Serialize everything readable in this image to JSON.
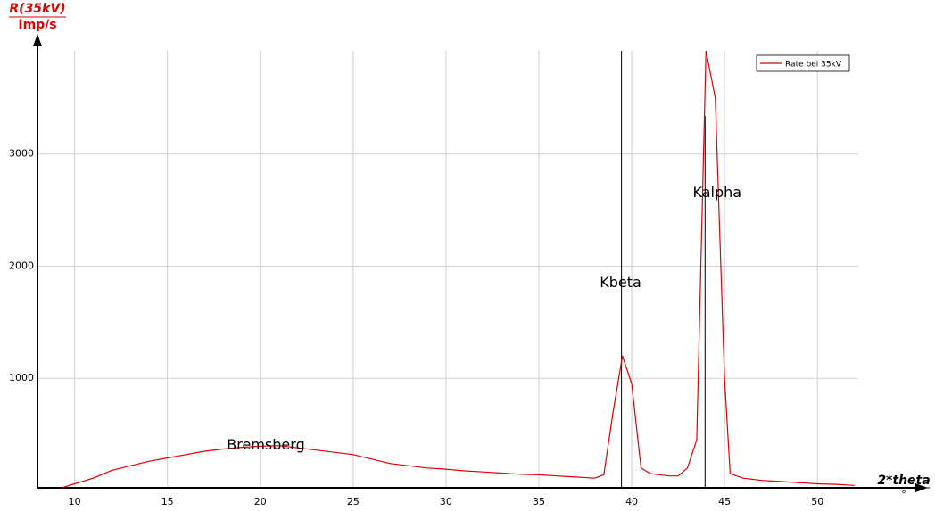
{
  "chart_data": {
    "type": "line",
    "y_label_top": "R(35kV)",
    "y_label_bottom": "Imp/s",
    "x_label_top": "2*theta",
    "x_label_bottom": "°",
    "xlim": [
      8,
      52.2
    ],
    "ylim": [
      0,
      3920
    ],
    "xticks": [
      10,
      15,
      20,
      25,
      30,
      35,
      40,
      45,
      50
    ],
    "yticks": [
      1000,
      2000,
      3000
    ],
    "grid": true,
    "legend": "upper right",
    "series": [
      {
        "name": "Rate bei 35kV",
        "color": "#e00000",
        "x": [
          9.3,
          10,
          11,
          12,
          13,
          14,
          15,
          16,
          17,
          18,
          19,
          20,
          21,
          22,
          23,
          24,
          25,
          26,
          27,
          28,
          29,
          30,
          31,
          32,
          33,
          34,
          35,
          36,
          37,
          38,
          38.5,
          39,
          39.5,
          40,
          40.5,
          41,
          42,
          42.5,
          43,
          43.5,
          44,
          44.5,
          45,
          45.3,
          46,
          47,
          48,
          49,
          50,
          51,
          52
        ],
        "values": [
          25,
          60,
          110,
          180,
          220,
          260,
          290,
          320,
          350,
          370,
          385,
          395,
          400,
          380,
          360,
          340,
          320,
          280,
          240,
          220,
          200,
          190,
          175,
          165,
          155,
          145,
          140,
          130,
          120,
          110,
          140,
          700,
          1200,
          950,
          200,
          150,
          130,
          130,
          200,
          450,
          3920,
          3500,
          1000,
          150,
          110,
          90,
          80,
          70,
          60,
          55,
          45
        ]
      }
    ],
    "vlines": [
      39.45,
      43.95
    ],
    "annotations": [
      {
        "text": "Bremsberg",
        "x": 20.3,
        "y": 400
      },
      {
        "text": "Kbeta",
        "x": 39.4,
        "y": 1850
      },
      {
        "text": "Kalpha",
        "x": 44.6,
        "y": 2650
      }
    ]
  }
}
